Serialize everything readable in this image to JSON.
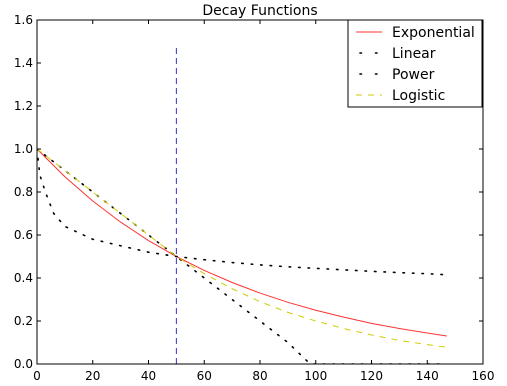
{
  "chart_data": {
    "type": "line",
    "title": "Decay Functions",
    "xlabel": "",
    "ylabel": "",
    "xlim": [
      0,
      160
    ],
    "ylim": [
      0.0,
      1.6
    ],
    "xticks": [
      0,
      20,
      40,
      60,
      80,
      100,
      120,
      140,
      160
    ],
    "yticks": [
      0.0,
      0.2,
      0.4,
      0.6,
      0.8,
      1.0,
      1.2,
      1.4,
      1.6
    ],
    "tick_decimals": {
      "x": 0,
      "y": 1
    },
    "grid": false,
    "legend_position": "top-right",
    "reference_line": {
      "x": 50,
      "y_range": [
        0.0,
        1.48
      ],
      "color": "#3333cc",
      "style": "dashed"
    },
    "series": [
      {
        "name": "Exponential",
        "color": "#ff3333",
        "style": "solid",
        "x": [
          0,
          10,
          20,
          30,
          40,
          50,
          60,
          70,
          80,
          90,
          100,
          110,
          120,
          130,
          140,
          147
        ],
        "y": [
          1.0,
          0.871,
          0.758,
          0.66,
          0.574,
          0.5,
          0.435,
          0.379,
          0.33,
          0.287,
          0.25,
          0.218,
          0.189,
          0.165,
          0.144,
          0.13
        ]
      },
      {
        "name": "Linear",
        "color": "#000000",
        "style": "dotted",
        "x": [
          0,
          10,
          20,
          30,
          40,
          50,
          60,
          70,
          80,
          90,
          98,
          100,
          110,
          120,
          130,
          140,
          147
        ],
        "y": [
          1.0,
          0.9,
          0.8,
          0.7,
          0.6,
          0.5,
          0.4,
          0.3,
          0.2,
          0.1,
          0.0,
          0.0,
          0.0,
          0.0,
          0.0,
          0.0,
          0.0
        ]
      },
      {
        "name": "Power",
        "color": "#000000",
        "style": "dotted",
        "x": [
          0,
          1,
          3,
          6,
          10,
          15,
          20,
          30,
          40,
          50,
          60,
          70,
          80,
          90,
          100,
          110,
          120,
          130,
          140,
          147
        ],
        "y": [
          1.0,
          0.88,
          0.8,
          0.7,
          0.64,
          0.61,
          0.58,
          0.55,
          0.52,
          0.5,
          0.485,
          0.472,
          0.461,
          0.452,
          0.445,
          0.438,
          0.431,
          0.425,
          0.42,
          0.415
        ]
      },
      {
        "name": "Logistic",
        "color": "#cccc00",
        "style": "dashed",
        "x": [
          0,
          10,
          20,
          30,
          40,
          50,
          60,
          70,
          80,
          90,
          100,
          110,
          120,
          130,
          140,
          147
        ],
        "y": [
          1.0,
          0.9,
          0.8,
          0.7,
          0.6,
          0.5,
          0.42,
          0.35,
          0.29,
          0.24,
          0.2,
          0.165,
          0.135,
          0.11,
          0.09,
          0.078
        ]
      }
    ]
  }
}
